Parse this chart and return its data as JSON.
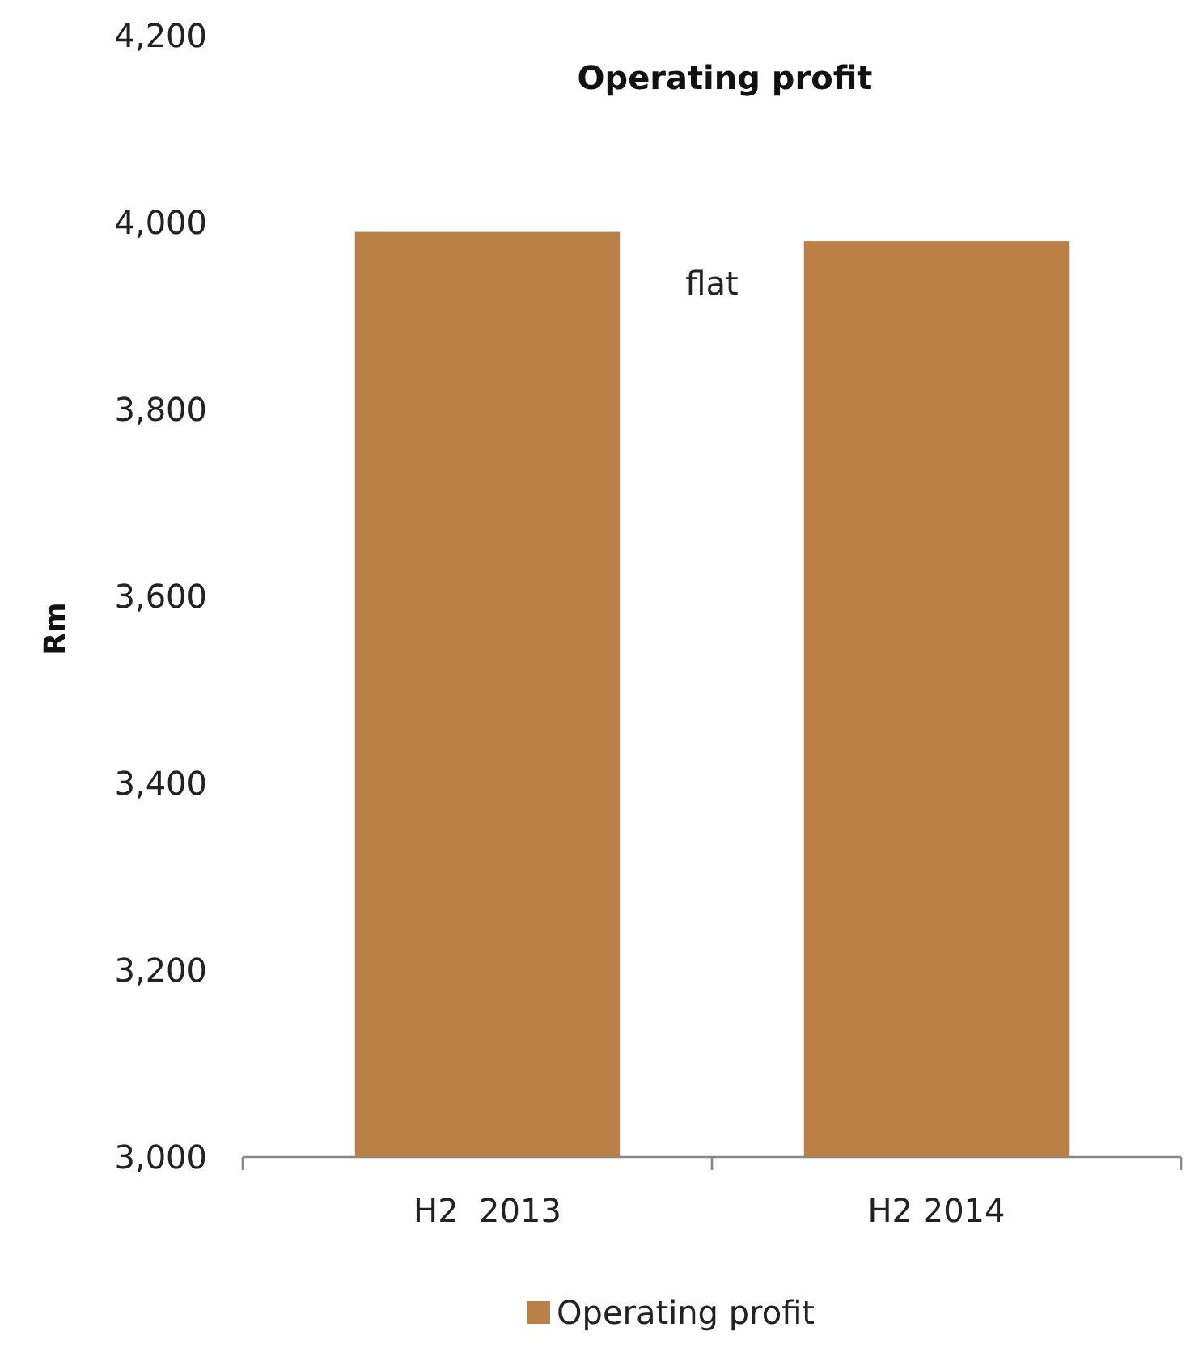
{
  "chart_data": {
    "type": "bar",
    "title": "Operating profit",
    "ylabel": "Rm",
    "categories": [
      "H2  2013",
      "H2 2014"
    ],
    "series": [
      {
        "name": "Operating profit",
        "color": "#bb8045",
        "values": [
          3990,
          3980
        ]
      }
    ],
    "ylim": [
      3000,
      4200
    ],
    "yticks": [
      {
        "value": 3000,
        "label": "3,000"
      },
      {
        "value": 3200,
        "label": "3,200"
      },
      {
        "value": 3400,
        "label": "3,400"
      },
      {
        "value": 3600,
        "label": "3,600"
      },
      {
        "value": 3800,
        "label": "3,800"
      },
      {
        "value": 4000,
        "label": "4,000"
      },
      {
        "value": 4200,
        "label": "4,200"
      }
    ],
    "annotations": [
      "flat"
    ],
    "legend": "bottom",
    "grid": false
  }
}
